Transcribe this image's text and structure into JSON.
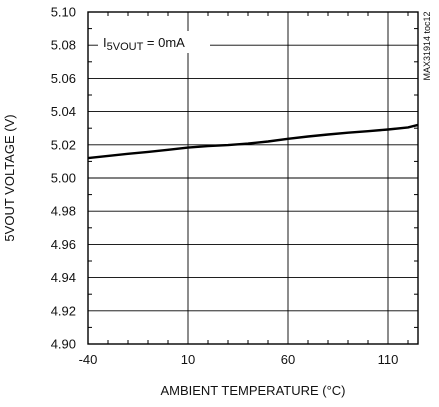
{
  "chart_data": {
    "type": "line",
    "xlabel": "AMBIENT TEMPERATURE (°C)",
    "ylabel": "5VOUT VOLTAGE (V)",
    "xlim": [
      -40,
      125
    ],
    "ylim": [
      4.9,
      5.1
    ],
    "x_ticks": [
      -40,
      10,
      60,
      110
    ],
    "x_tick_labels": [
      "-40",
      "10",
      "60",
      "110"
    ],
    "y_ticks": [
      4.9,
      4.92,
      4.94,
      4.96,
      4.98,
      5.0,
      5.02,
      5.04,
      5.06,
      5.08,
      5.1
    ],
    "y_tick_labels": [
      "4.90",
      "4.92",
      "4.94",
      "4.96",
      "4.98",
      "5.00",
      "5.02",
      "5.04",
      "5.06",
      "5.08",
      "5.10"
    ],
    "x_minor_ticks": [
      -30,
      -20,
      -10,
      0,
      20,
      30,
      40,
      50,
      70,
      80,
      90,
      100,
      120
    ],
    "y_minor_ticks": [
      4.91,
      4.93,
      4.95,
      4.97,
      4.99,
      5.01,
      5.03,
      5.05,
      5.07,
      5.09
    ],
    "grid": true,
    "annotation": {
      "prefix": "I",
      "subscript": "5VOUT",
      "suffix": " = 0mA"
    },
    "chart_id": "MAX31914 toc12",
    "series": [
      {
        "x": [
          -40,
          -30,
          -20,
          -10,
          0,
          10,
          20,
          30,
          40,
          50,
          60,
          70,
          80,
          90,
          100,
          110,
          120,
          125
        ],
        "values": [
          5.012,
          5.0133,
          5.0146,
          5.0157,
          5.017,
          5.0183,
          5.0192,
          5.0198,
          5.0207,
          5.022,
          5.0236,
          5.025,
          5.0262,
          5.0273,
          5.0282,
          5.0292,
          5.0305,
          5.032
        ]
      }
    ],
    "colors": {
      "line": "#000000",
      "grid": "#000000",
      "background": "#ffffff"
    }
  }
}
